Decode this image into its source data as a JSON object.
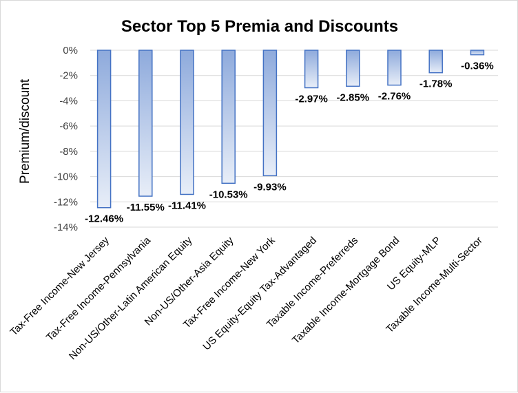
{
  "chart_data": {
    "type": "bar",
    "title": "Sector Top 5 Premia and Discounts",
    "ylabel": "Premium/discount",
    "xlabel": "",
    "ylim": [
      -14,
      0
    ],
    "yticks": [
      0,
      -2,
      -4,
      -6,
      -8,
      -10,
      -12,
      -14
    ],
    "ytick_labels": [
      "0%",
      "-2%",
      "-4%",
      "-6%",
      "-8%",
      "-10%",
      "-12%",
      "-14%"
    ],
    "grid": true,
    "legend": "none",
    "categories": [
      "Tax-Free Income-New Jersey",
      "Tax-Free Income-Pennsylvania",
      "Non-US/Other-Latin American Equity",
      "Non-US/Other-Asia Equity",
      "Tax-Free Income-New York",
      "US Equity-Equity Tax-Advantaged",
      "Taxable Income-Preferreds",
      "Taxable Income-Mortgage Bond",
      "US Equity-MLP",
      "Taxable Income-Multi-Sector"
    ],
    "values": [
      -12.46,
      -11.55,
      -11.41,
      -10.53,
      -9.93,
      -2.97,
      -2.85,
      -2.76,
      -1.78,
      -0.36
    ],
    "data_labels": [
      "-12.46%",
      "-11.55%",
      "-11.41%",
      "-10.53%",
      "-9.93%",
      "-2.97%",
      "-2.85%",
      "-2.76%",
      "-1.78%",
      "-0.36%"
    ],
    "colors": {
      "bar_edge": "#4472c4",
      "bar_fill_top": "#8eaadc",
      "bar_fill_bottom": "#e8eef8",
      "grid": "#d9d9d9"
    }
  }
}
